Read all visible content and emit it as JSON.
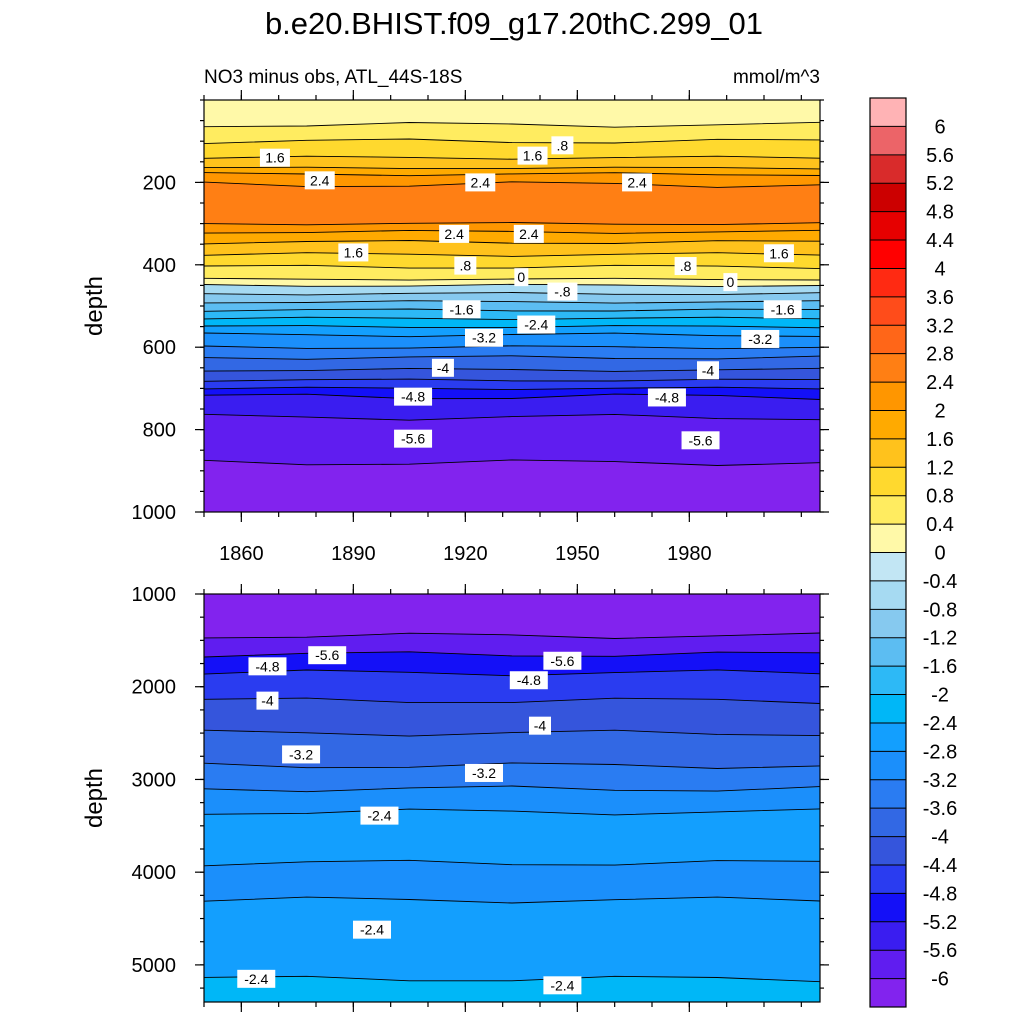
{
  "chart_data": {
    "type": "heatmap",
    "title": "b.e20.BHIST.f09_g17.20thC.299_01",
    "subtitle_left": "NO3 minus obs, ATL_44S-18S",
    "subtitle_right": "mmol/m^3",
    "x_ticks": [
      "1860",
      "1890",
      "1920",
      "1950",
      "1980"
    ],
    "x_tick_values": [
      1860,
      1890,
      1920,
      1950,
      1980
    ],
    "xlim": [
      1850,
      2015
    ],
    "panels": [
      {
        "name": "upper",
        "ylabel": "depth",
        "ylim": [
          0,
          1000
        ],
        "y_ticks": [
          "200",
          "400",
          "600",
          "800",
          "1000"
        ],
        "y_tick_values": [
          200,
          400,
          600,
          800,
          1000
        ],
        "bands": [
          {
            "depth": 0,
            "value": 0.4
          },
          {
            "depth": 60,
            "value": 0.8
          },
          {
            "depth": 100,
            "value": 1.2
          },
          {
            "depth": 140,
            "value": 1.6
          },
          {
            "depth": 165,
            "value": 2.0
          },
          {
            "depth": 180,
            "value": 2.4
          },
          {
            "depth": 205,
            "value": 2.8
          },
          {
            "depth": 300,
            "value": 2.4
          },
          {
            "depth": 320,
            "value": 2.0
          },
          {
            "depth": 345,
            "value": 1.6
          },
          {
            "depth": 375,
            "value": 1.2
          },
          {
            "depth": 405,
            "value": 0.8
          },
          {
            "depth": 435,
            "value": 0.4
          },
          {
            "depth": 450,
            "value": -0.4
          },
          {
            "depth": 470,
            "value": -0.8
          },
          {
            "depth": 490,
            "value": -1.2
          },
          {
            "depth": 510,
            "value": -1.6
          },
          {
            "depth": 530,
            "value": -2.0
          },
          {
            "depth": 550,
            "value": -2.4
          },
          {
            "depth": 570,
            "value": -2.8
          },
          {
            "depth": 600,
            "value": -3.2
          },
          {
            "depth": 625,
            "value": -3.6
          },
          {
            "depth": 655,
            "value": -4.0
          },
          {
            "depth": 680,
            "value": -4.4
          },
          {
            "depth": 700,
            "value": -4.8
          },
          {
            "depth": 720,
            "value": -5.2
          },
          {
            "depth": 770,
            "value": -5.6
          },
          {
            "depth": 880,
            "value": -6.0
          }
        ],
        "labels": [
          {
            "text": "1.6",
            "x": 1869,
            "depth": 140
          },
          {
            "text": "1.6",
            "x": 1938,
            "depth": 135
          },
          {
            "text": ".8",
            "x": 1946,
            "depth": 110
          },
          {
            "text": "2.4",
            "x": 1881,
            "depth": 195
          },
          {
            "text": "2.4",
            "x": 1924,
            "depth": 200
          },
          {
            "text": "2.4",
            "x": 1966,
            "depth": 200
          },
          {
            "text": "2.4",
            "x": 1917,
            "depth": 325
          },
          {
            "text": "2.4",
            "x": 1937,
            "depth": 325
          },
          {
            "text": "1.6",
            "x": 1890,
            "depth": 370
          },
          {
            "text": "1.6",
            "x": 2004,
            "depth": 372
          },
          {
            "text": ".8",
            "x": 1920,
            "depth": 402
          },
          {
            "text": ".8",
            "x": 1979,
            "depth": 403
          },
          {
            "text": "0",
            "x": 1935,
            "depth": 430
          },
          {
            "text": "0",
            "x": 1991,
            "depth": 442
          },
          {
            "text": "-.8",
            "x": 1946,
            "depth": 465
          },
          {
            "text": "-1.6",
            "x": 1919,
            "depth": 508
          },
          {
            "text": "-1.6",
            "x": 2005,
            "depth": 508
          },
          {
            "text": "-2.4",
            "x": 1939,
            "depth": 545
          },
          {
            "text": "-3.2",
            "x": 1925,
            "depth": 577
          },
          {
            "text": "-3.2",
            "x": 1999,
            "depth": 580
          },
          {
            "text": "-4",
            "x": 1914,
            "depth": 650
          },
          {
            "text": "-4",
            "x": 1985,
            "depth": 656
          },
          {
            "text": "-4.8",
            "x": 1906,
            "depth": 720
          },
          {
            "text": "-4.8",
            "x": 1974,
            "depth": 722
          },
          {
            "text": "-5.6",
            "x": 1906,
            "depth": 822
          },
          {
            "text": "-5.6",
            "x": 1983,
            "depth": 826
          }
        ]
      },
      {
        "name": "lower",
        "ylabel": "depth",
        "ylim": [
          1000,
          5400
        ],
        "y_ticks": [
          "1000",
          "2000",
          "3000",
          "4000",
          "5000"
        ],
        "y_tick_values": [
          1000,
          2000,
          3000,
          4000,
          5000
        ],
        "bands": [
          {
            "depth": 1000,
            "value": -6.0
          },
          {
            "depth": 1450,
            "value": -5.6
          },
          {
            "depth": 1650,
            "value": -4.8
          },
          {
            "depth": 1850,
            "value": -4.4
          },
          {
            "depth": 2150,
            "value": -4.0
          },
          {
            "depth": 2500,
            "value": -3.6
          },
          {
            "depth": 2850,
            "value": -3.2
          },
          {
            "depth": 3100,
            "value": -2.8
          },
          {
            "depth": 3350,
            "value": -2.4
          },
          {
            "depth": 3900,
            "value": -2.8
          },
          {
            "depth": 4300,
            "value": -2.4
          },
          {
            "depth": 5150,
            "value": -2.0
          }
        ],
        "labels": [
          {
            "text": "-5.6",
            "x": 1883,
            "depth": 1660
          },
          {
            "text": "-4.8",
            "x": 1867,
            "depth": 1780
          },
          {
            "text": "-5.6",
            "x": 1946,
            "depth": 1720
          },
          {
            "text": "-4.8",
            "x": 1937,
            "depth": 1930
          },
          {
            "text": "-4",
            "x": 1867,
            "depth": 2150
          },
          {
            "text": "-4",
            "x": 1940,
            "depth": 2420
          },
          {
            "text": "-3.2",
            "x": 1876,
            "depth": 2730
          },
          {
            "text": "-3.2",
            "x": 1925,
            "depth": 2930
          },
          {
            "text": "-2.4",
            "x": 1897,
            "depth": 3390
          },
          {
            "text": "-2.4",
            "x": 1895,
            "depth": 4620
          },
          {
            "text": "-2.4",
            "x": 1864,
            "depth": 5150
          },
          {
            "text": "-2.4",
            "x": 1946,
            "depth": 5220
          }
        ]
      }
    ],
    "colorbar": {
      "levels": [
        "6",
        "5.6",
        "5.2",
        "4.8",
        "4.4",
        "4",
        "3.6",
        "3.2",
        "2.8",
        "2.4",
        "2",
        "1.6",
        "1.2",
        "0.8",
        "0.4",
        "0",
        "-0.4",
        "-0.8",
        "-1.2",
        "-1.6",
        "-2",
        "-2.4",
        "-2.8",
        "-3.2",
        "-3.6",
        "-4",
        "-4.4",
        "-4.8",
        "-5.2",
        "-5.6",
        "-6"
      ],
      "colors": [
        "#ffb3b5",
        "#ec6468",
        "#d92b2b",
        "#cc0000",
        "#e60000",
        "#ff0000",
        "#ff2a12",
        "#ff4c1a",
        "#ff6618",
        "#ff7f14",
        "#ff9600",
        "#ffaa00",
        "#ffc21c",
        "#ffd92e",
        "#ffec60",
        "#fff9a8",
        "#c2e6f4",
        "#a6daf2",
        "#86c9ef",
        "#5cbdf2",
        "#2db9f6",
        "#00b7f7",
        "#139ffe",
        "#1b8ffb",
        "#2a7cf2",
        "#3268e4",
        "#3555dc",
        "#2a3cf0",
        "#1410f7",
        "#3a1df0",
        "#601df0",
        "#8223ee"
      ]
    }
  }
}
